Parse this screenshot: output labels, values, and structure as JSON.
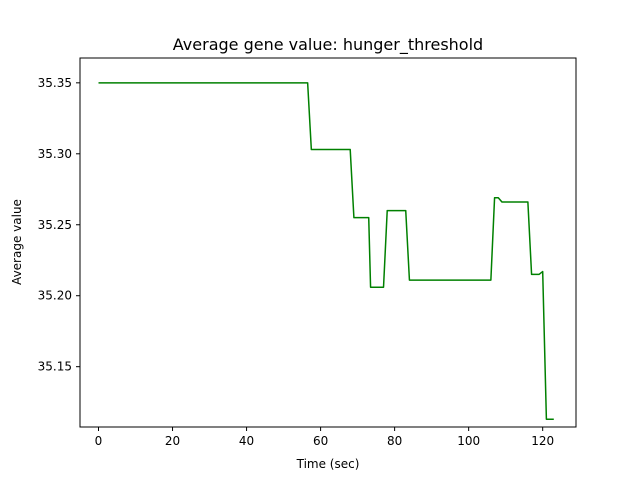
{
  "chart_data": {
    "type": "line",
    "title": "Average gene value: hunger_threshold",
    "xlabel": "Time (sec)",
    "ylabel": "Average value",
    "xlim": [
      -5,
      129
    ],
    "ylim": [
      35.1075,
      35.3675
    ],
    "xticks": [
      0,
      20,
      40,
      60,
      80,
      100,
      120
    ],
    "xtick_labels": [
      "0",
      "20",
      "40",
      "60",
      "80",
      "100",
      "120"
    ],
    "yticks": [
      35.15,
      35.2,
      35.25,
      35.3,
      35.35
    ],
    "ytick_labels": [
      "35.15",
      "35.20",
      "35.25",
      "35.30",
      "35.35"
    ],
    "grid": false,
    "series": [
      {
        "color": "#008000",
        "x": [
          0,
          56.5,
          57.5,
          68,
          69,
          73,
          73.5,
          77,
          78,
          83,
          84,
          106,
          107,
          108,
          109,
          116,
          117,
          119,
          120,
          121,
          123
        ],
        "y": [
          35.35,
          35.35,
          35.303,
          35.303,
          35.255,
          35.255,
          35.206,
          35.206,
          35.26,
          35.26,
          35.211,
          35.211,
          35.269,
          35.269,
          35.266,
          35.266,
          35.215,
          35.215,
          35.217,
          35.113,
          35.113
        ]
      }
    ]
  }
}
